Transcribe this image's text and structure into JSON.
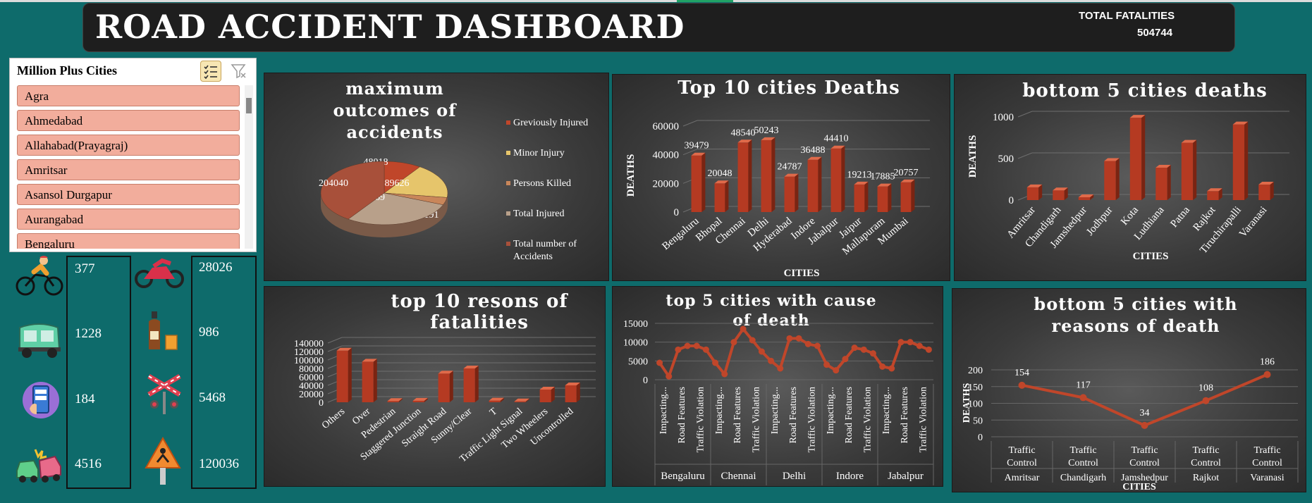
{
  "header": {
    "title": "ROAD ACCIDENT DASHBOARD",
    "total_fatalities_label": "TOTAL FATALITIES",
    "total_fatalities_value": "504744"
  },
  "slicer": {
    "title": "Million Plus Cities",
    "items": [
      "Agra",
      "Ahmedabad",
      "Allahabad(Prayagraj)",
      "Amritsar",
      "Asansol Durgapur",
      "Aurangabad",
      "Bengaluru"
    ],
    "multiselect_icon": "multiselect-icon",
    "clear_filter_icon": "clear-filter-icon"
  },
  "stats": [
    {
      "icon": "cyclist-icon",
      "value": "377"
    },
    {
      "icon": "auto-rickshaw-icon",
      "value": "1228"
    },
    {
      "icon": "mobile-phone-icon",
      "value": "184"
    },
    {
      "icon": "car-crash-icon",
      "value": "4516"
    },
    {
      "icon": "motorbike-icon",
      "value": "28026"
    },
    {
      "icon": "alcohol-icon",
      "value": "986"
    },
    {
      "icon": "railway-crossing-icon",
      "value": "5468"
    },
    {
      "icon": "road-work-icon",
      "value": "120036"
    }
  ],
  "chart_data": [
    {
      "id": "pie",
      "type": "pie",
      "title": "maximum outcomes of accidents",
      "categories": [
        "Greviously Injured",
        "Minor Injury",
        "Persons Killed",
        "Total Injured",
        "Total number of Accidents"
      ],
      "values": [
        48018,
        89626,
        19191,
        143869,
        204040
      ],
      "colors": [
        "#c0462a",
        "#e6c56b",
        "#c9865a",
        "#b8a08a",
        "#a8503a"
      ],
      "legend": "right"
    },
    {
      "id": "top10",
      "type": "bar",
      "title": "Top 10 cities Deaths",
      "xlabel": "CITIES",
      "ylabel": "DEATHS",
      "categories": [
        "Bengaluru",
        "Bhopal",
        "Chennai",
        "Delhi",
        "Hyderabad",
        "Indore",
        "Jabalpur",
        "Jaipur",
        "Mallapuram",
        "Mumbai"
      ],
      "values": [
        39479,
        20048,
        48540,
        50243,
        24787,
        36488,
        44410,
        19213,
        17885,
        20757
      ],
      "yticks": [
        0,
        20000,
        40000,
        60000
      ],
      "ylim": [
        0,
        60000
      ],
      "color": "#c0462a"
    },
    {
      "id": "bottom5",
      "type": "bar",
      "title": "bottom 5 cities deaths",
      "xlabel": "CITIES",
      "ylabel": "DEATHS",
      "categories": [
        "Amritsar",
        "Chandigarh",
        "Jamshedpur",
        "Jodhpur",
        "Kota",
        "Ludhiana",
        "Patna",
        "Rajkot",
        "Tiruchirapalli",
        "Varanasi"
      ],
      "values": [
        154,
        117,
        34,
        470,
        990,
        390,
        690,
        108,
        910,
        186
      ],
      "yticks": [
        0,
        500,
        1000
      ],
      "ylim": [
        0,
        1000
      ],
      "color": "#c0462a"
    },
    {
      "id": "reasons",
      "type": "bar",
      "title": "top 10 resons of fatalities",
      "categories": [
        "Others",
        "Over",
        "Pedestrian",
        "Staggered Junction",
        "Straight Road",
        "Sunny/Clear",
        "T",
        "Traffic Light Signal",
        "Two Wheelers",
        "Uncontrolled"
      ],
      "values": [
        122000,
        96000,
        3000,
        3500,
        68000,
        80000,
        4000,
        2000,
        30000,
        40000
      ],
      "yticks": [
        0,
        20000,
        40000,
        60000,
        80000,
        100000,
        120000,
        140000
      ],
      "ylim": [
        0,
        140000
      ],
      "color": "#c0462a"
    },
    {
      "id": "top5cause",
      "type": "line",
      "title": "top 5 cities with cause of death",
      "groups": [
        "Bengaluru",
        "Chennai",
        "Delhi",
        "Indore",
        "Jabalpur"
      ],
      "group_ticks": [
        "Impacting...",
        "Road Features",
        "Traffic Violation"
      ],
      "values": [
        4500,
        900,
        8000,
        9000,
        9000,
        8000,
        4500,
        1500,
        10000,
        13500,
        10500,
        7500,
        5000,
        3000,
        11000,
        11000,
        9500,
        9000,
        4000,
        2500,
        5500,
        8500,
        8000,
        7000,
        3500,
        3000,
        10000,
        10000,
        9000,
        8000
      ],
      "yticks": [
        0,
        5000,
        10000,
        15000
      ],
      "ylim": [
        0,
        15000
      ],
      "color": "#c0462a"
    },
    {
      "id": "bottom5reasons",
      "type": "line",
      "title": "bottom 5 cities with reasons of death",
      "xlabel": "CITIES",
      "ylabel": "DEATHS",
      "categories": [
        "Traffic Control",
        "Traffic Control",
        "Traffic Control",
        "Traffic Control",
        "Traffic Control"
      ],
      "groups": [
        "Amritsar",
        "Chandigarh",
        "Jamshedpur",
        "Rajkot",
        "Varanasi"
      ],
      "values": [
        154,
        117,
        34,
        108,
        186
      ],
      "yticks": [
        0,
        50,
        100,
        150,
        200
      ],
      "ylim": [
        0,
        200
      ],
      "color": "#c0462a"
    }
  ]
}
